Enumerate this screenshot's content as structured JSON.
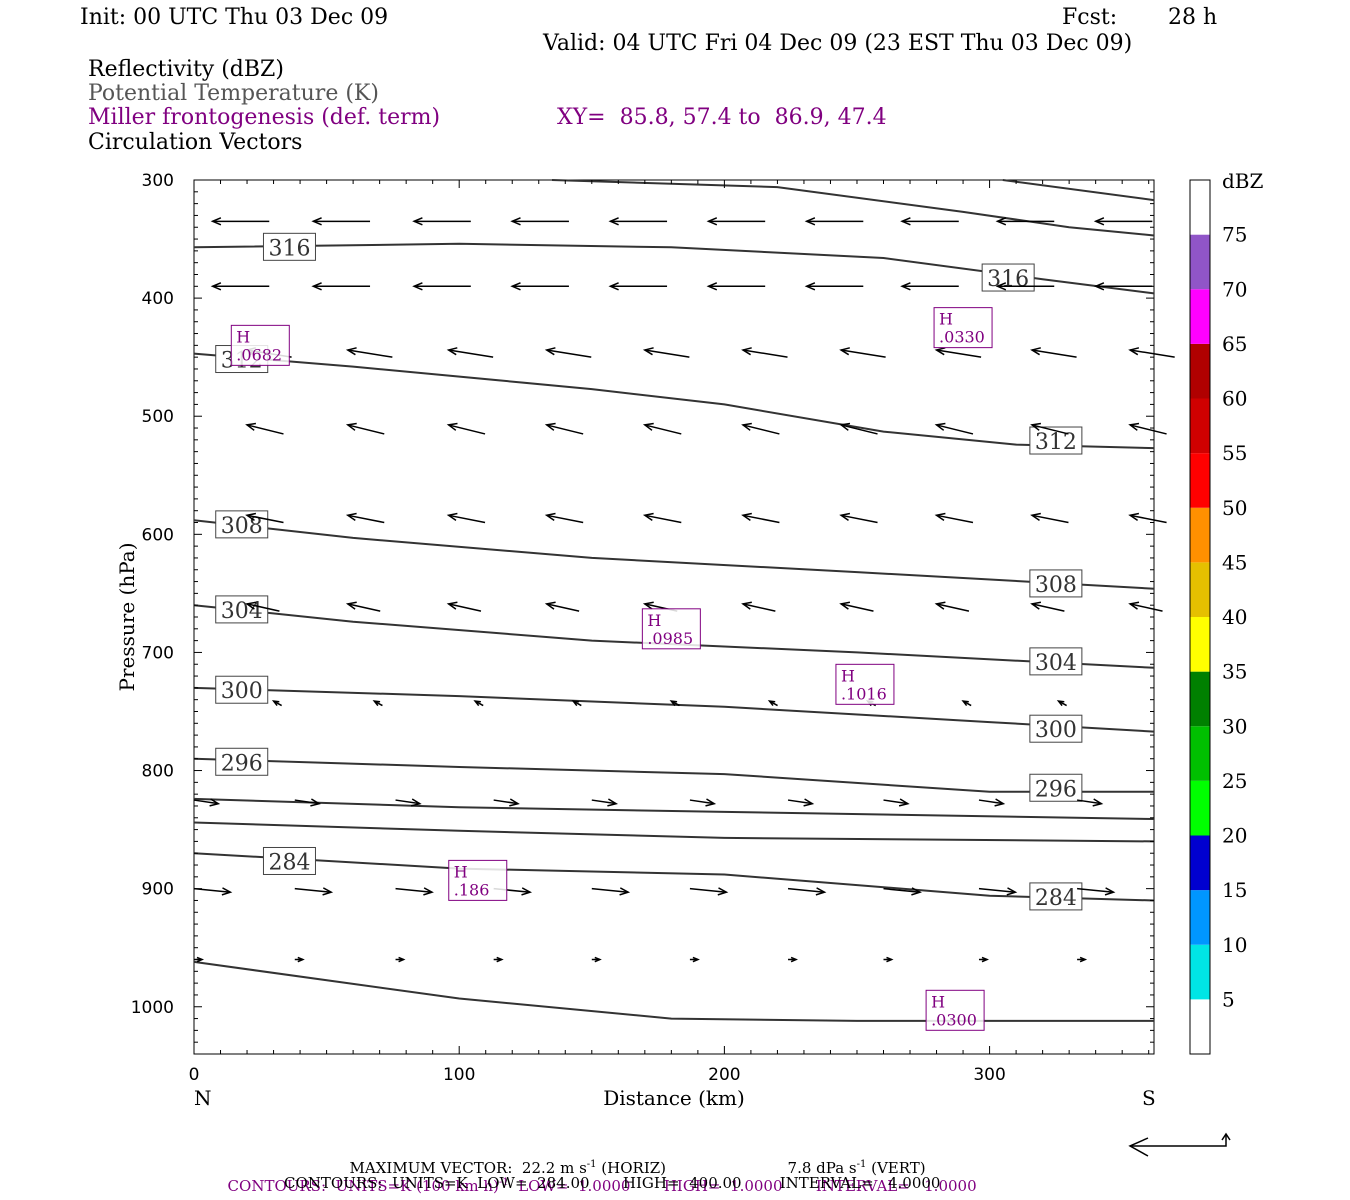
{
  "header": {
    "init": "Init: 00 UTC Thu 03 Dec 09",
    "fcst_label": "Fcst:",
    "fcst_value": "28 h",
    "valid": "Valid: 04 UTC Fri 04 Dec 09 (23 EST Thu 03 Dec 09)",
    "fields": [
      "Reflectivity (dBZ)",
      "Potential Temperature (K)",
      "Miller frontogenesis (def. term)",
      "Circulation Vectors"
    ],
    "xy": "XY=  85.8, 57.4 to  86.9, 47.4"
  },
  "colors": {
    "purple": "#800080",
    "theta_line": "#333333",
    "vector": "#000000"
  },
  "chart_data": {
    "type": "cross-section",
    "xlabel": "Distance (km)",
    "ylabel": "Pressure (hPa)",
    "xlim": [
      0,
      362
    ],
    "ylim": [
      1040,
      300
    ],
    "x_ticks": [
      0,
      100,
      200,
      300
    ],
    "y_ticks": [
      300,
      400,
      500,
      600,
      700,
      800,
      900,
      1000
    ],
    "x_end_labels": {
      "left": "N",
      "right": "S"
    },
    "theta_contours": [
      {
        "label": "316",
        "points": [
          [
            0,
            357
          ],
          [
            100,
            354
          ],
          [
            180,
            357
          ],
          [
            260,
            366
          ],
          [
            320,
            384
          ],
          [
            362,
            396
          ]
        ],
        "labels_at": [
          [
            36,
            357
          ],
          [
            307,
            383
          ]
        ]
      },
      {
        "label": "",
        "points": [
          [
            135,
            300
          ],
          [
            220,
            306
          ],
          [
            290,
            327
          ],
          [
            330,
            340
          ],
          [
            362,
            347
          ]
        ],
        "labels_at": []
      },
      {
        "label": "",
        "points": [
          [
            305,
            300
          ],
          [
            362,
            317
          ]
        ],
        "labels_at": []
      },
      {
        "label": "312",
        "points": [
          [
            0,
            447
          ],
          [
            60,
            458
          ],
          [
            150,
            477
          ],
          [
            200,
            490
          ],
          [
            260,
            513
          ],
          [
            310,
            524
          ],
          [
            362,
            527
          ]
        ],
        "labels_at": [
          [
            18,
            452
          ],
          [
            325,
            521
          ]
        ]
      },
      {
        "label": "308",
        "points": [
          [
            0,
            588
          ],
          [
            60,
            603
          ],
          [
            150,
            620
          ],
          [
            250,
            632
          ],
          [
            362,
            646
          ]
        ],
        "labels_at": [
          [
            18,
            592
          ],
          [
            325,
            642
          ]
        ]
      },
      {
        "label": "304",
        "points": [
          [
            0,
            660
          ],
          [
            60,
            674
          ],
          [
            150,
            690
          ],
          [
            250,
            700
          ],
          [
            362,
            713
          ]
        ],
        "labels_at": [
          [
            18,
            664
          ],
          [
            325,
            708
          ]
        ]
      },
      {
        "label": "300",
        "points": [
          [
            0,
            730
          ],
          [
            100,
            737
          ],
          [
            200,
            746
          ],
          [
            300,
            759
          ],
          [
            362,
            767
          ]
        ],
        "labels_at": [
          [
            18,
            732
          ],
          [
            325,
            765
          ]
        ]
      },
      {
        "label": "296",
        "points": [
          [
            0,
            790
          ],
          [
            100,
            797
          ],
          [
            200,
            803
          ],
          [
            300,
            818
          ],
          [
            362,
            818
          ]
        ],
        "labels_at": [
          [
            18,
            793
          ],
          [
            325,
            815
          ]
        ]
      },
      {
        "label": "",
        "points": [
          [
            0,
            824
          ],
          [
            100,
            831
          ],
          [
            200,
            835
          ],
          [
            362,
            841
          ]
        ],
        "labels_at": []
      },
      {
        "label": "",
        "points": [
          [
            0,
            844
          ],
          [
            100,
            851
          ],
          [
            200,
            857
          ],
          [
            362,
            860
          ]
        ],
        "labels_at": []
      },
      {
        "label": "284",
        "points": [
          [
            0,
            870
          ],
          [
            100,
            883
          ],
          [
            200,
            888
          ],
          [
            300,
            906
          ],
          [
            362,
            910
          ]
        ],
        "labels_at": [
          [
            36,
            877
          ],
          [
            325,
            907
          ]
        ]
      },
      {
        "label": "",
        "points": [
          [
            0,
            962
          ],
          [
            100,
            993
          ],
          [
            180,
            1010
          ],
          [
            250,
            1012
          ],
          [
            362,
            1012
          ]
        ],
        "labels_at": []
      }
    ],
    "frontogenesis_maxima": [
      {
        "label": "H",
        "value": ".0682",
        "x": 25,
        "p": 440
      },
      {
        "label": "H",
        "value": ".0330",
        "x": 290,
        "p": 425
      },
      {
        "label": "H",
        "value": ".0985",
        "x": 180,
        "p": 680
      },
      {
        "label": "H",
        "value": ".1016",
        "x": 253,
        "p": 727
      },
      {
        "label": "H",
        "value": ".186",
        "x": 107,
        "p": 893
      },
      {
        "label": "H",
        "value": ".0300",
        "x": 287,
        "p": 1003
      }
    ],
    "vector_rows": [
      {
        "p": 335,
        "u": -0.7,
        "w": 0.0,
        "x0": 7
      },
      {
        "p": 390,
        "u": -0.7,
        "w": 0.0,
        "x0": 7
      },
      {
        "p": 450,
        "u": -0.55,
        "w": 0.08,
        "x0": 20
      },
      {
        "p": 515,
        "u": -0.45,
        "w": 0.1,
        "x0": 20
      },
      {
        "p": 590,
        "u": -0.45,
        "w": 0.08,
        "x0": 20
      },
      {
        "p": 665,
        "u": -0.4,
        "w": 0.08,
        "x0": 20
      },
      {
        "p": 745,
        "u": -0.1,
        "w": 0.05,
        "x0": 30
      },
      {
        "p": 825,
        "u": 0.3,
        "w": -0.04,
        "x0": 0
      },
      {
        "p": 900,
        "u": 0.45,
        "w": -0.04,
        "x0": 0
      },
      {
        "p": 960,
        "u": 0.1,
        "w": 0.0,
        "x0": 0
      }
    ],
    "colorbar": {
      "title": "dBZ",
      "labels": [
        "5",
        "10",
        "15",
        "20",
        "25",
        "30",
        "35",
        "40",
        "45",
        "50",
        "55",
        "60",
        "65",
        "70",
        "75"
      ],
      "colors": [
        "#ffffff",
        "#00e5e5",
        "#0096ff",
        "#0000d0",
        "#00ff00",
        "#00c000",
        "#008000",
        "#ffff00",
        "#e5c000",
        "#ff9000",
        "#ff0000",
        "#d00000",
        "#b00000",
        "#ff00ff",
        "#9055c8",
        "#ffffff"
      ]
    }
  },
  "footer": {
    "max_vector": "MAXIMUM VECTOR:  22.2 m s",
    "max_vector_sup": "-1",
    "max_vector_horiz": " (HORIZ)",
    "max_vector_vert": "7.8 dPa s",
    "max_vector_vert_sup": "-1",
    "max_vector_vert_tail": " (VERT)",
    "contours_purple_a": "CONTOURS:  UNITS=K (100 km h)",
    "contours_purple_sup": "-1",
    "contours_purple_b": "  LOW=  1.0000       HIGH=  1.0000       INTERVAL=   1.0000",
    "contours_black": "CONTOURS:  UNITS=K  LOW=  284.00       HIGH=  400.00        INTERVAL=   4.0000"
  }
}
